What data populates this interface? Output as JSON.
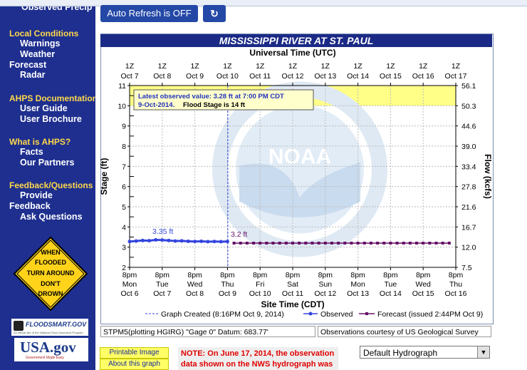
{
  "top_hint": "Observed Precip",
  "sidebar": {
    "sections": [
      {
        "heading": "Local Conditions",
        "items": [
          "Warnings",
          "Weather"
        ]
      },
      {
        "heading": "Forecast",
        "items": [
          "Radar"
        ]
      },
      {
        "heading": "AHPS Documentation",
        "items": [
          "User Guide",
          "User Brochure"
        ]
      },
      {
        "heading": "What is AHPS?",
        "items": [
          "Facts",
          "Our Partners"
        ]
      },
      {
        "heading": "Feedback/Questions",
        "items": [
          "Provide"
        ]
      },
      {
        "heading": "Feedback",
        "items": [
          "Ask Questions"
        ]
      }
    ],
    "warning_sign": [
      "WHEN",
      "FLOODED",
      "TURN AROUND",
      "DON'T",
      "DROWN"
    ],
    "floodsmart": "FLOODSMART.GOV",
    "floodsmart_sub": "An official site of the National Flood Insurance Program",
    "usagov": "USA.gov",
    "usagov_sub": "Government Made Easy"
  },
  "toolbar": {
    "auto_refresh": "Auto Refresh is OFF",
    "reload_icon": "refresh-icon"
  },
  "chart_data": {
    "type": "line",
    "title": "MISSISSIPPI RIVER AT ST. PAUL",
    "top_axis_title": "Universal Time (UTC)",
    "top_ticks": [
      [
        "1Z",
        "Oct 7"
      ],
      [
        "1Z",
        "Oct 8"
      ],
      [
        "1Z",
        "Oct 9"
      ],
      [
        "1Z",
        "Oct 10"
      ],
      [
        "1Z",
        "Oct 11"
      ],
      [
        "1Z",
        "Oct 12"
      ],
      [
        "1Z",
        "Oct 13"
      ],
      [
        "1Z",
        "Oct 14"
      ],
      [
        "1Z",
        "Oct 15"
      ],
      [
        "1Z",
        "Oct 16"
      ],
      [
        "1Z",
        "Oct 17"
      ]
    ],
    "bottom_axis_title": "Site Time (CDT)",
    "bottom_ticks": [
      [
        "8pm",
        "Mon",
        "Oct 6"
      ],
      [
        "8pm",
        "Tue",
        "Oct 7"
      ],
      [
        "8pm",
        "Wed",
        "Oct 8"
      ],
      [
        "8pm",
        "Thu",
        "Oct 9"
      ],
      [
        "8pm",
        "Fri",
        "Oct 10"
      ],
      [
        "8pm",
        "Sat",
        "Oct 11"
      ],
      [
        "8pm",
        "Sun",
        "Oct 12"
      ],
      [
        "8pm",
        "Mon",
        "Oct 13"
      ],
      [
        "8pm",
        "Tue",
        "Oct 14"
      ],
      [
        "8pm",
        "Wed",
        "Oct 15"
      ],
      [
        "8pm",
        "Thu",
        "Oct 16"
      ]
    ],
    "ylabel_left": "Stage (ft)",
    "ylabel_right": "Flow (kcfs)",
    "ylim": [
      2,
      11
    ],
    "left_ticks": [
      2,
      3,
      4,
      5,
      6,
      7,
      8,
      9,
      10,
      11
    ],
    "right_ticks": [
      "7.5",
      "12.0",
      "16.7",
      "21.6",
      "27.8",
      "33.4",
      "39.0",
      "44.6",
      "50.3",
      "56.1"
    ],
    "flood_stage": 14,
    "shaded_band": [
      10,
      11
    ],
    "created_x": 3.01,
    "series": [
      {
        "name": "Observed",
        "color": "#3344dd",
        "x": [
          0.0,
          0.2,
          0.4,
          0.6,
          0.8,
          1.0,
          1.2,
          1.4,
          1.6,
          1.8,
          2.0,
          2.2,
          2.4,
          2.6,
          2.8,
          3.0
        ],
        "y": [
          3.28,
          3.3,
          3.33,
          3.32,
          3.36,
          3.35,
          3.33,
          3.3,
          3.31,
          3.29,
          3.28,
          3.29,
          3.27,
          3.28,
          3.27,
          3.28
        ]
      },
      {
        "name": "Forecast (issued 2:44PM Oct 9)",
        "color": "#661166",
        "x": [
          3.2,
          3.4,
          3.6,
          3.8,
          4.0,
          4.2,
          4.4,
          4.6,
          4.8,
          5.0,
          5.2,
          5.4,
          5.6,
          5.8,
          6.0,
          6.2,
          6.4,
          6.6,
          6.8,
          7.0,
          7.2,
          7.4,
          7.6,
          7.8,
          8.0,
          8.2,
          8.4,
          8.6,
          8.8,
          9.0,
          9.2,
          9.4,
          9.6,
          9.8
        ],
        "y": [
          3.2,
          3.2,
          3.2,
          3.2,
          3.2,
          3.2,
          3.2,
          3.2,
          3.2,
          3.2,
          3.2,
          3.2,
          3.2,
          3.2,
          3.2,
          3.2,
          3.2,
          3.2,
          3.2,
          3.2,
          3.2,
          3.2,
          3.2,
          3.2,
          3.2,
          3.2,
          3.2,
          3.2,
          3.2,
          3.2,
          3.2,
          3.2,
          3.2,
          3.2
        ]
      }
    ],
    "annotations": {
      "obs_label": "3.35 ft",
      "fcst_label": "3.2 ft",
      "latest_line1": "Latest observed value: 3.28 ft at 7:00 PM CDT",
      "latest_line2a": "9-Oct-2014.",
      "latest_line2b": "Flood Stage is 14 ft"
    },
    "legend": {
      "created": "Graph Created (8:16PM Oct 9, 2014)",
      "observed": "Observed",
      "forecast": "Forecast (issued 2:44PM Oct 9)"
    },
    "watermark": "NOAA"
  },
  "info": {
    "left": "STPM5(plotting HGIRG) \"Gage 0\" Datum: 683.77'",
    "right": "Observations courtesy of US Geological Survey"
  },
  "buttons": {
    "printable": "Printable Image",
    "about": "About this graph"
  },
  "note": "NOTE: On June 17, 2014, the observation data shown on the NWS hydrograph was",
  "hydrograph_select": "Default Hydrograph",
  "colors": {
    "sidebar": "#1e2f8f",
    "heading": "#ffd84a",
    "title_bar": "#1b2a86",
    "observed": "#3344dd",
    "forecast": "#661166"
  }
}
